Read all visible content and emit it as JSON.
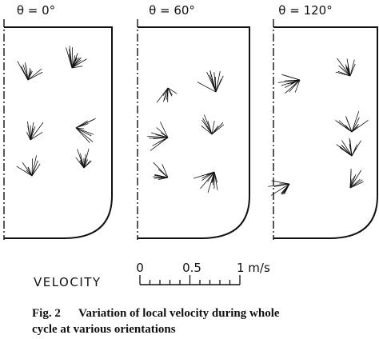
{
  "panels": [
    {
      "title": "θ = 0°"
    },
    {
      "title": "θ = 60°"
    },
    {
      "title": "θ = 120°"
    }
  ],
  "scale": {
    "label": "VELOCITY",
    "ticks": [
      "0",
      "0.5",
      "1 m/s"
    ]
  },
  "caption": {
    "number": "Fig. 2",
    "text_line1": "Variation of local velocity during whole",
    "text_line2": "cycle at various orientations"
  }
}
